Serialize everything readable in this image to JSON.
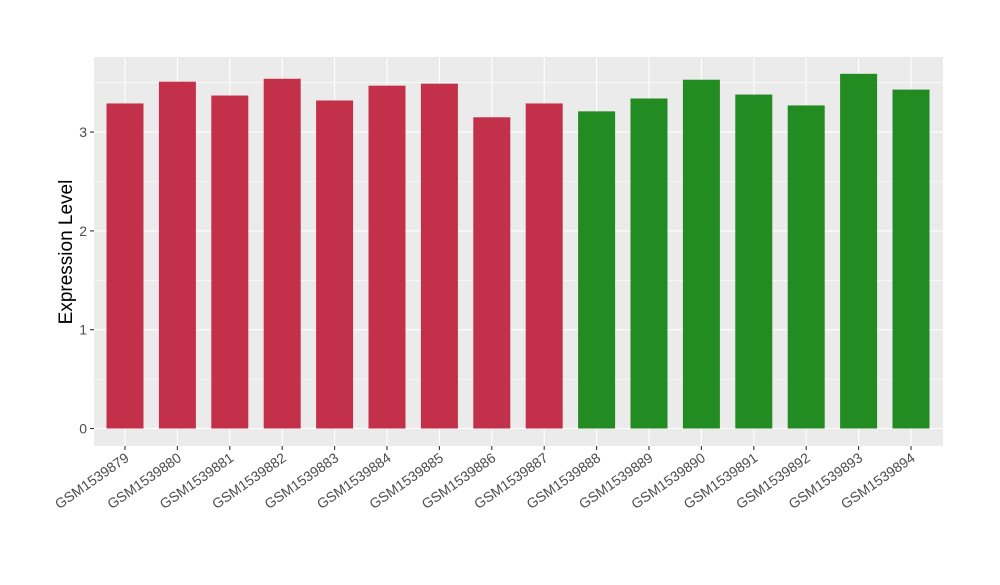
{
  "chart_data": {
    "type": "bar",
    "title": "",
    "xlabel": "",
    "ylabel": "Expression Level",
    "ylim": [
      0,
      3.8
    ],
    "yticks": [
      0,
      1,
      2,
      3
    ],
    "grid": true,
    "categories": [
      "GSM1539879",
      "GSM1539880",
      "GSM1539881",
      "GSM1539882",
      "GSM1539883",
      "GSM1539884",
      "GSM1539885",
      "GSM1539886",
      "GSM1539887",
      "GSM1539888",
      "GSM1539889",
      "GSM1539890",
      "GSM1539891",
      "GSM1539892",
      "GSM1539893",
      "GSM1539894"
    ],
    "values": [
      3.29,
      3.51,
      3.37,
      3.54,
      3.32,
      3.47,
      3.49,
      3.15,
      3.29,
      3.21,
      3.34,
      3.53,
      3.38,
      3.27,
      3.59,
      3.43
    ],
    "colors": [
      "#C3304A",
      "#C3304A",
      "#C3304A",
      "#C3304A",
      "#C3304A",
      "#C3304A",
      "#C3304A",
      "#C3304A",
      "#C3304A",
      "#228B22",
      "#228B22",
      "#228B22",
      "#228B22",
      "#228B22",
      "#228B22",
      "#228B22"
    ],
    "style": {
      "panel_background": "#EBEBEB",
      "grid_color": "#FFFFFF",
      "tick_color": "#333333"
    }
  }
}
